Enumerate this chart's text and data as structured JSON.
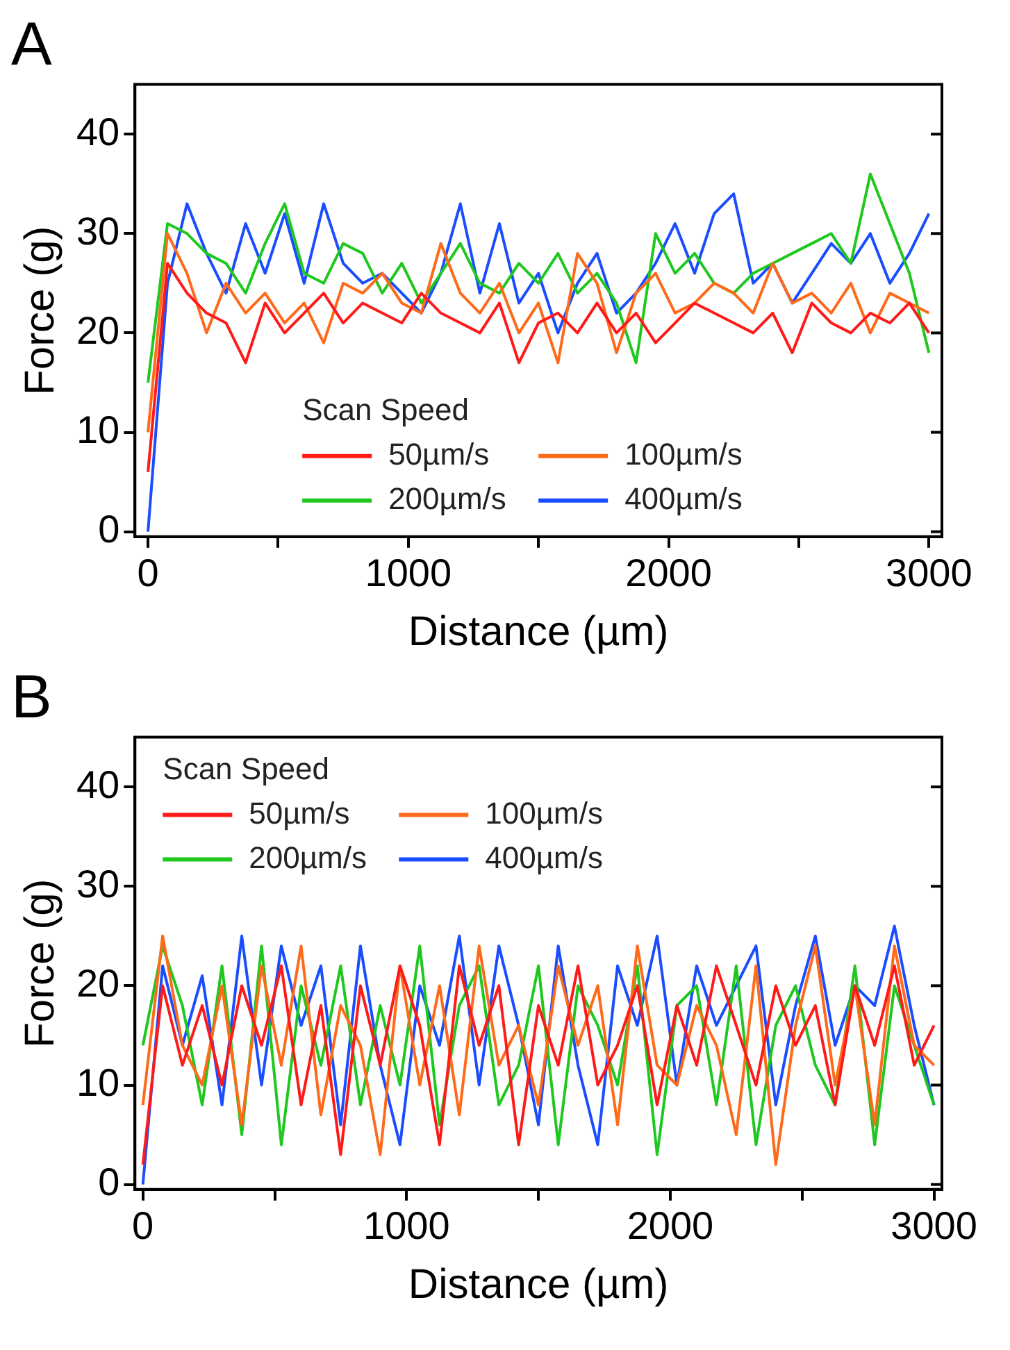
{
  "chart_data": [
    {
      "type": "line",
      "title": "A",
      "xlabel": "Distance (µm)",
      "ylabel": "Force (g)",
      "legend_title": "Scan Speed",
      "legend": "bottom",
      "grid": false,
      "marker": "none",
      "line_style": "solid",
      "xlim": [
        -50,
        3050
      ],
      "xticks": [
        0,
        {
          "value": 500,
          "label": null
        },
        1000,
        {
          "value": 1500,
          "label": null
        },
        2000,
        {
          "value": 2500,
          "label": null
        },
        3000
      ],
      "ylim": [
        -0.5,
        45
      ],
      "yticks": [
        0,
        10,
        20,
        30,
        40
      ],
      "x": [
        0,
        75,
        150,
        225,
        300,
        375,
        450,
        525,
        600,
        675,
        750,
        825,
        900,
        975,
        1050,
        1125,
        1200,
        1275,
        1350,
        1425,
        1500,
        1575,
        1650,
        1725,
        1800,
        1875,
        1950,
        2025,
        2100,
        2175,
        2250,
        2325,
        2400,
        2475,
        2550,
        2625,
        2700,
        2775,
        2850,
        2925,
        3000
      ],
      "series": [
        {
          "name": "50µm/s",
          "color": "#ff1a1a",
          "values": [
            6,
            27,
            24,
            22,
            21,
            17,
            23,
            20,
            22,
            24,
            21,
            23,
            22,
            21,
            24,
            22,
            21,
            20,
            23,
            17,
            21,
            22,
            20,
            23,
            20,
            22,
            19,
            21,
            23,
            22,
            21,
            20,
            22,
            18,
            23,
            21,
            20,
            22,
            21,
            23,
            20
          ]
        },
        {
          "name": "100µm/s",
          "color": "#ff6a1a",
          "values": [
            10,
            30,
            26,
            20,
            25,
            22,
            24,
            21,
            23,
            19,
            25,
            24,
            26,
            23,
            22,
            29,
            24,
            22,
            25,
            20,
            23,
            17,
            28,
            25,
            18,
            24,
            26,
            22,
            23,
            25,
            24,
            22,
            27,
            23,
            24,
            22,
            25,
            20,
            24,
            23,
            22
          ]
        },
        {
          "name": "200µm/s",
          "color": "#1ec81e",
          "values": [
            15,
            31,
            30,
            28,
            27,
            24,
            29,
            33,
            26,
            25,
            29,
            28,
            24,
            27,
            23,
            26,
            29,
            25,
            24,
            27,
            25,
            28,
            24,
            26,
            23,
            17,
            30,
            26,
            28,
            25,
            24,
            26,
            27,
            28,
            29,
            30,
            27,
            36,
            31,
            26,
            18
          ]
        },
        {
          "name": "400µm/s",
          "color": "#1a4dff",
          "values": [
            0,
            25,
            33,
            28,
            24,
            31,
            26,
            32,
            25,
            33,
            27,
            25,
            26,
            24,
            22,
            26,
            33,
            24,
            31,
            23,
            26,
            20,
            25,
            28,
            22,
            24,
            27,
            31,
            26,
            32,
            34,
            25,
            27,
            23,
            26,
            29,
            27,
            30,
            25,
            28,
            32
          ]
        }
      ]
    },
    {
      "type": "line",
      "title": "B",
      "xlabel": "Distance (µm)",
      "ylabel": "Force (g)",
      "legend_title": "Scan Speed",
      "legend": "top left",
      "grid": false,
      "marker": "none",
      "line_style": "solid",
      "xlim": [
        -30,
        3030
      ],
      "xticks": [
        0,
        {
          "value": 500,
          "label": null
        },
        1000,
        {
          "value": 1500,
          "label": null
        },
        2000,
        {
          "value": 2500,
          "label": null
        },
        3000
      ],
      "ylim": [
        -0.5,
        45
      ],
      "yticks": [
        0,
        10,
        20,
        30,
        40
      ],
      "x": [
        0,
        75,
        150,
        225,
        300,
        375,
        450,
        525,
        600,
        675,
        750,
        825,
        900,
        975,
        1050,
        1125,
        1200,
        1275,
        1350,
        1425,
        1500,
        1575,
        1650,
        1725,
        1800,
        1875,
        1950,
        2025,
        2100,
        2175,
        2250,
        2325,
        2400,
        2475,
        2550,
        2625,
        2700,
        2775,
        2850,
        2925,
        3000
      ],
      "series": [
        {
          "name": "50µm/s",
          "color": "#ff1a1a",
          "values": [
            2,
            20,
            12,
            18,
            10,
            20,
            14,
            22,
            8,
            18,
            3,
            20,
            12,
            22,
            16,
            4,
            22,
            14,
            20,
            4,
            18,
            12,
            22,
            10,
            14,
            20,
            8,
            18,
            12,
            22,
            16,
            10,
            20,
            14,
            18,
            8,
            20,
            14,
            22,
            12,
            16
          ]
        },
        {
          "name": "100µm/s",
          "color": "#ff6a1a",
          "values": [
            8,
            25,
            14,
            10,
            20,
            6,
            22,
            12,
            24,
            7,
            18,
            14,
            3,
            22,
            10,
            20,
            7,
            24,
            12,
            16,
            8,
            22,
            14,
            20,
            6,
            24,
            12,
            10,
            18,
            14,
            5,
            22,
            2,
            16,
            24,
            10,
            20,
            6,
            24,
            14,
            12
          ]
        },
        {
          "name": "200µm/s",
          "color": "#1ec81e",
          "values": [
            14,
            24,
            18,
            8,
            22,
            5,
            24,
            4,
            20,
            12,
            22,
            8,
            18,
            10,
            24,
            6,
            18,
            22,
            8,
            12,
            22,
            4,
            20,
            16,
            10,
            22,
            3,
            18,
            20,
            8,
            22,
            4,
            16,
            20,
            12,
            8,
            22,
            4,
            20,
            14,
            8
          ]
        },
        {
          "name": "400µm/s",
          "color": "#1a4dff",
          "values": [
            0,
            22,
            14,
            21,
            8,
            25,
            10,
            24,
            16,
            22,
            6,
            24,
            12,
            4,
            20,
            14,
            25,
            10,
            24,
            16,
            6,
            24,
            12,
            4,
            22,
            16,
            25,
            10,
            22,
            16,
            20,
            24,
            8,
            18,
            25,
            14,
            20,
            18,
            26,
            16,
            8
          ]
        }
      ]
    }
  ]
}
